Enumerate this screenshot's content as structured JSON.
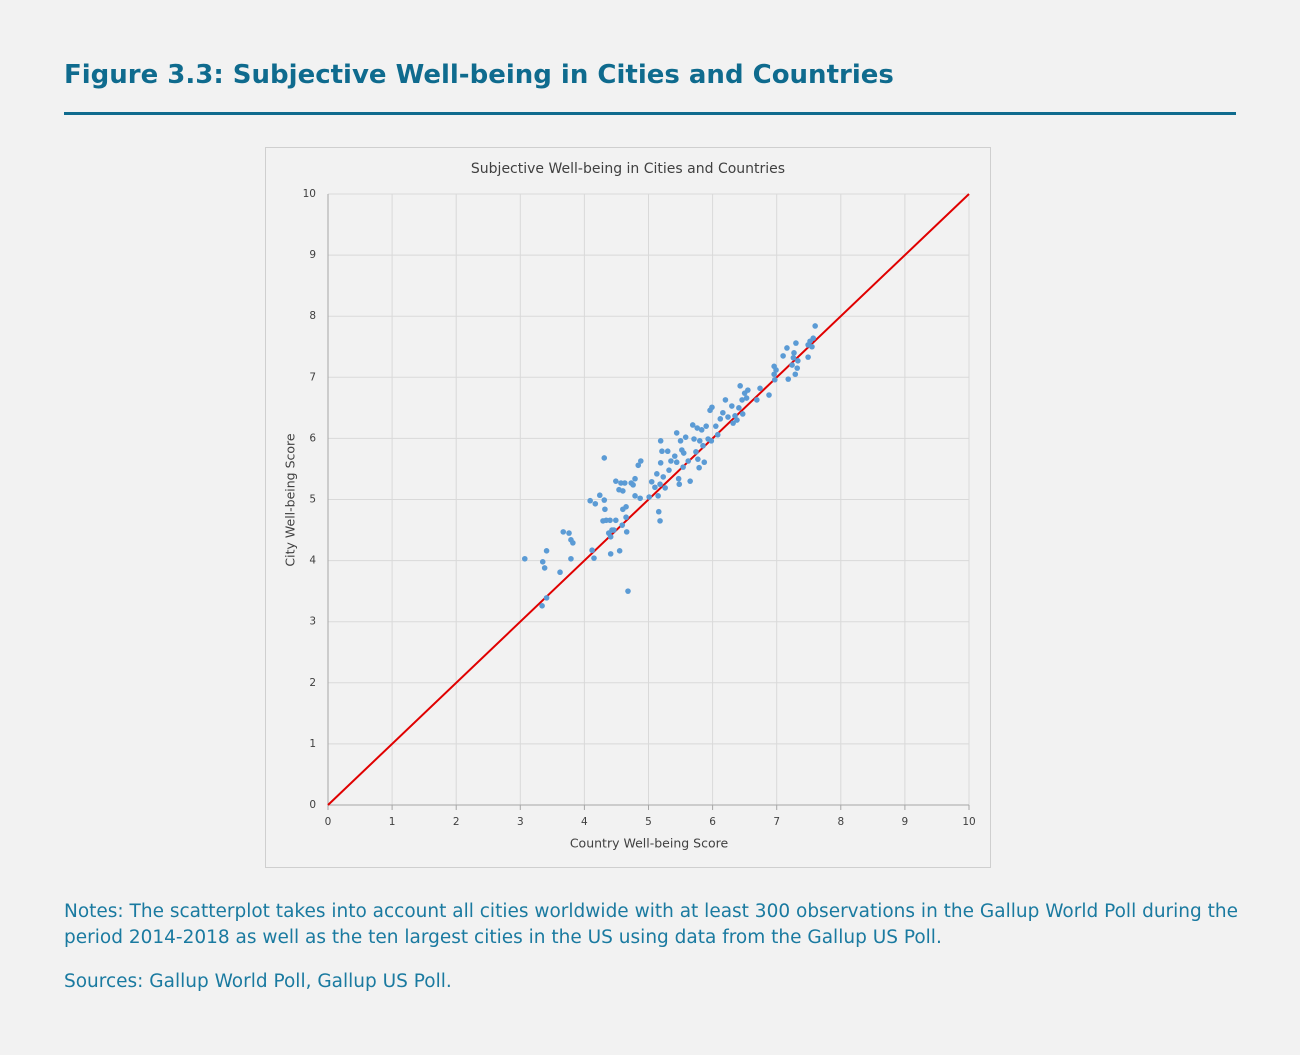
{
  "header": {
    "title": "Figure 3.3: Subjective Well-being in Cities and Countries"
  },
  "chart_data": {
    "type": "scatter",
    "title": "Subjective Well-being in Cities and Countries",
    "x_label": "Country Well-being Score",
    "y_label": "City Well-being Score",
    "xlim": [
      0,
      10
    ],
    "ylim": [
      0,
      10
    ],
    "xticks": [
      0,
      1,
      2,
      3,
      4,
      5,
      6,
      7,
      8,
      9,
      10
    ],
    "yticks": [
      0,
      1,
      2,
      3,
      4,
      5,
      6,
      7,
      8,
      9,
      10
    ],
    "grid": true,
    "reference_line_color": "#e00000",
    "series": [
      {
        "color": "#5b9bd5",
        "x": [
          3.07,
          3.35,
          3.38,
          3.41,
          3.41,
          3.34,
          3.62,
          3.67,
          3.76,
          3.79,
          3.82,
          3.79,
          4.09,
          4.17,
          4.12,
          4.15,
          4.24,
          4.31,
          4.31,
          4.32,
          4.34,
          4.29,
          4.4,
          4.43,
          4.41,
          4.38,
          4.49,
          4.46,
          4.41,
          4.55,
          4.49,
          4.57,
          4.54,
          4.63,
          4.6,
          4.65,
          4.6,
          4.65,
          4.59,
          4.66,
          4.68,
          4.73,
          4.79,
          4.76,
          4.79,
          4.87,
          4.84,
          4.88,
          5.01,
          5.05,
          5.1,
          5.13,
          5.15,
          5.16,
          5.18,
          5.19,
          5.21,
          5.19,
          5.23,
          5.18,
          5.26,
          5.3,
          5.32,
          5.35,
          5.41,
          5.44,
          5.44,
          5.47,
          5.48,
          5.5,
          5.52,
          5.54,
          5.55,
          5.58,
          5.62,
          5.65,
          5.69,
          5.71,
          5.74,
          5.76,
          5.77,
          5.79,
          5.8,
          5.83,
          5.85,
          5.87,
          5.9,
          5.93,
          5.96,
          5.98,
          5.99,
          6.05,
          6.08,
          6.12,
          6.16,
          6.2,
          6.24,
          6.3,
          6.32,
          6.35,
          6.38,
          6.43,
          6.41,
          6.46,
          6.47,
          6.5,
          6.53,
          6.55,
          6.69,
          6.74,
          6.88,
          6.96,
          6.96,
          6.97,
          6.99,
          7.1,
          7.16,
          7.18,
          7.24,
          7.26,
          7.27,
          7.3,
          7.29,
          7.32,
          7.33,
          7.49,
          7.49,
          7.52,
          7.55,
          7.57,
          7.6
        ],
        "values": [
          4.03,
          3.98,
          3.88,
          4.16,
          3.39,
          3.26,
          3.81,
          4.47,
          4.45,
          4.34,
          4.29,
          4.03,
          4.98,
          4.93,
          4.17,
          4.04,
          5.07,
          4.99,
          5.68,
          4.84,
          4.66,
          4.65,
          4.66,
          4.5,
          4.39,
          4.45,
          4.66,
          4.5,
          4.11,
          4.16,
          5.3,
          5.27,
          5.16,
          5.27,
          5.14,
          4.88,
          4.84,
          4.71,
          4.58,
          4.47,
          3.5,
          5.27,
          5.34,
          5.24,
          5.06,
          5.02,
          5.56,
          5.63,
          5.04,
          5.29,
          5.2,
          5.42,
          5.06,
          4.8,
          4.65,
          5.96,
          5.79,
          5.6,
          5.37,
          5.25,
          5.19,
          5.79,
          5.48,
          5.63,
          5.71,
          6.09,
          5.61,
          5.34,
          5.25,
          5.96,
          5.81,
          5.53,
          5.76,
          6.02,
          5.63,
          5.3,
          6.22,
          5.99,
          5.78,
          6.17,
          5.66,
          5.52,
          5.96,
          6.14,
          5.88,
          5.61,
          6.2,
          5.99,
          6.46,
          5.96,
          6.51,
          6.2,
          6.06,
          6.32,
          6.42,
          6.63,
          6.35,
          6.53,
          6.25,
          6.37,
          6.3,
          6.86,
          6.5,
          6.63,
          6.4,
          6.74,
          6.66,
          6.79,
          6.63,
          6.82,
          6.71,
          7.18,
          7.05,
          6.96,
          7.12,
          7.35,
          7.48,
          6.97,
          7.2,
          7.32,
          7.4,
          7.56,
          7.05,
          7.15,
          7.27,
          7.53,
          7.33,
          7.59,
          7.5,
          7.64,
          7.84
        ]
      }
    ]
  },
  "notes": "Notes: The scatterplot takes into account all cities worldwide with at least 300 observations in the Gallup World Poll during the period 2014-2018 as well as the ten largest cities in the US using data from the Gallup US Poll.",
  "sources": "Sources: Gallup World Poll, Gallup US Poll."
}
